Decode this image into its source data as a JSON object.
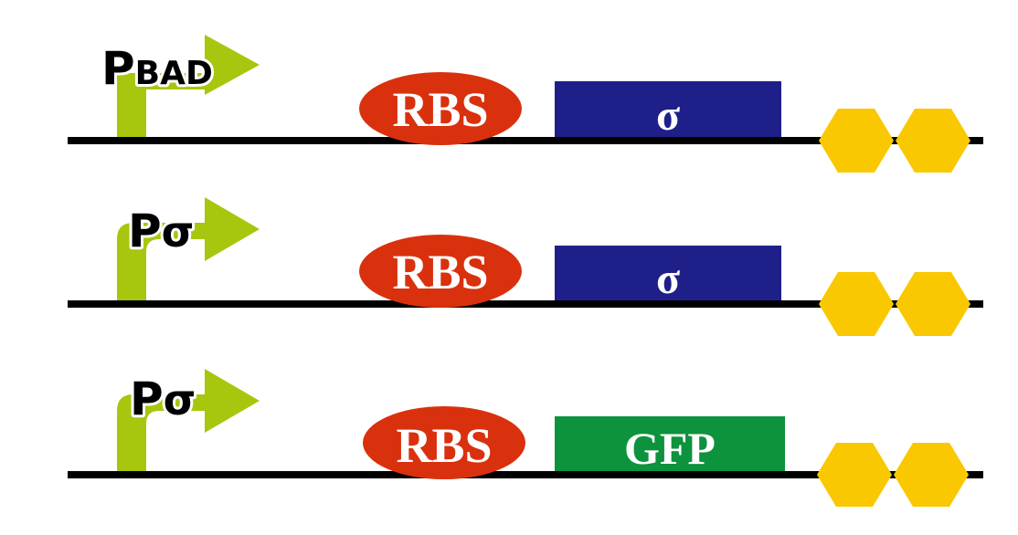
{
  "colors": {
    "backbone": "#000000",
    "promoter": "#a6c70e",
    "rbs": "#d9310d",
    "sigma_gene": "#1f1f8a",
    "gfp_gene": "#0d923d",
    "terminator": "#f9c800",
    "label_text": "#ffffff",
    "promoter_text": "#000000"
  },
  "constructs": [
    {
      "promoter": {
        "main": "P",
        "sub": "BAD",
        "icon": "promoter-arrow-icon"
      },
      "rbs": {
        "label": "RBS"
      },
      "gene": {
        "label": "σ",
        "color_key": "sigma_gene"
      },
      "terminator": {
        "icon": "terminator-hexagon-icon",
        "count": 2
      }
    },
    {
      "promoter": {
        "main": "P",
        "sub": "σ",
        "icon": "promoter-arrow-icon"
      },
      "rbs": {
        "label": "RBS"
      },
      "gene": {
        "label": "σ",
        "color_key": "sigma_gene"
      },
      "terminator": {
        "icon": "terminator-hexagon-icon",
        "count": 2
      }
    },
    {
      "promoter": {
        "main": "P",
        "sub": "σ",
        "icon": "promoter-arrow-icon"
      },
      "rbs": {
        "label": "RBS"
      },
      "gene": {
        "label": "GFP",
        "color_key": "gfp_gene"
      },
      "terminator": {
        "icon": "terminator-hexagon-icon",
        "count": 2
      }
    }
  ]
}
